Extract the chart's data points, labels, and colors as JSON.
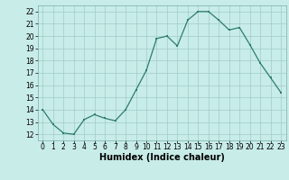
{
  "x": [
    0,
    1,
    2,
    3,
    4,
    5,
    6,
    7,
    8,
    9,
    10,
    11,
    12,
    13,
    14,
    15,
    16,
    17,
    18,
    19,
    20,
    21,
    22,
    23
  ],
  "y": [
    14,
    12.8,
    12.1,
    12.0,
    13.2,
    13.6,
    13.3,
    13.1,
    14.0,
    15.6,
    17.2,
    19.8,
    20.0,
    19.2,
    21.3,
    22.0,
    22.0,
    21.3,
    20.5,
    20.7,
    19.3,
    17.8,
    16.6,
    15.4
  ],
  "line_color": "#2d7d6e",
  "marker": "s",
  "marker_size": 2.0,
  "bg_color": "#c8ece8",
  "grid_color": "#a0ccc8",
  "xlabel": "Humidex (Indice chaleur)",
  "ylim": [
    11.5,
    22.5
  ],
  "xlim": [
    -0.5,
    23.5
  ],
  "yticks": [
    12,
    13,
    14,
    15,
    16,
    17,
    18,
    19,
    20,
    21,
    22
  ],
  "xticks": [
    0,
    1,
    2,
    3,
    4,
    5,
    6,
    7,
    8,
    9,
    10,
    11,
    12,
    13,
    14,
    15,
    16,
    17,
    18,
    19,
    20,
    21,
    22,
    23
  ],
  "tick_fontsize": 5.5,
  "label_fontsize": 7.0,
  "linewidth": 0.9
}
